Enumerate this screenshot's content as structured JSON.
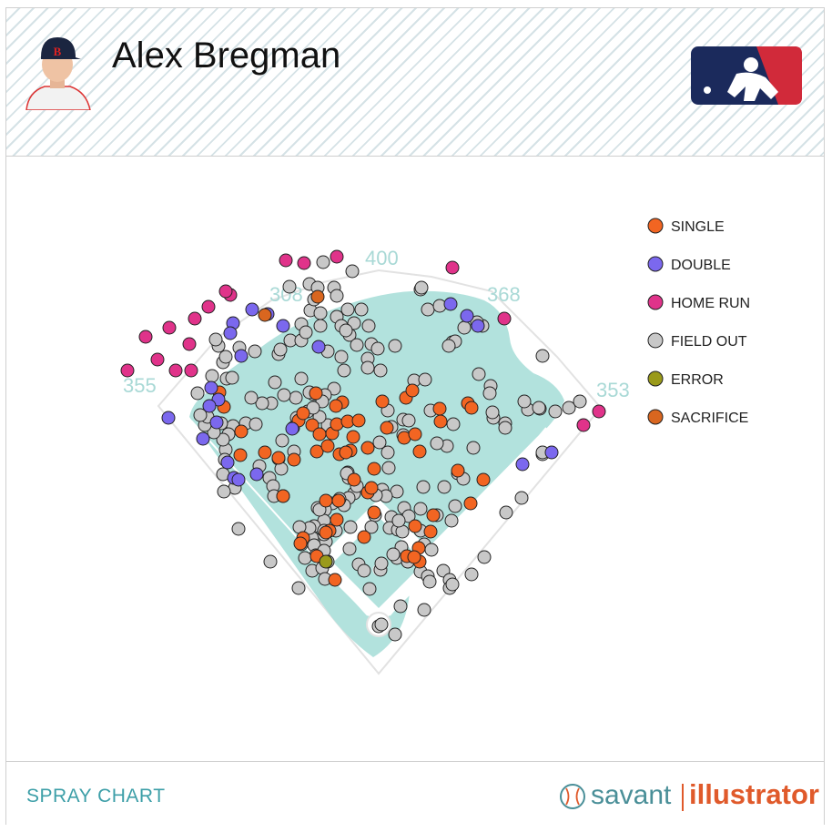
{
  "player": {
    "name": "Alex Bregman"
  },
  "footer": {
    "title": "SPRAY CHART",
    "brand_left": "savant",
    "brand_right": "illustrator"
  },
  "colors": {
    "single": "#f26522",
    "double": "#7b68ee",
    "home_run": "#e0338a",
    "field_out": "#c8c8c8",
    "error": "#9a9a1a",
    "sacrifice": "#d9661f",
    "grass": "#b2e2dd",
    "accent": "#3d9fa8"
  },
  "icons": {
    "headshot": "player-headshot-icon",
    "logo": "mlb-logo-icon",
    "brand": "baseball-icon"
  },
  "chart_data": {
    "type": "scatter",
    "title": "Alex Bregman",
    "legend_position": "top-right",
    "legend": [
      "SINGLE",
      "DOUBLE",
      "HOME RUN",
      "FIELD OUT",
      "ERROR",
      "SACRIFICE"
    ],
    "distance_labels": {
      "left_field": "355",
      "left_center": "308",
      "center": "400",
      "right_center": "368",
      "right_field": "353"
    },
    "series": [
      {
        "name": "SINGLE",
        "points": [
          [
            241,
            431
          ],
          [
            246,
            447
          ],
          [
            265,
            474
          ],
          [
            264,
            500
          ],
          [
            291,
            497
          ],
          [
            306,
            503
          ],
          [
            323,
            505
          ],
          [
            328,
            462
          ],
          [
            333,
            454
          ],
          [
            347,
            432
          ],
          [
            343,
            467
          ],
          [
            351,
            477
          ],
          [
            365,
            476
          ],
          [
            348,
            496
          ],
          [
            360,
            490
          ],
          [
            370,
            466
          ],
          [
            376,
            442
          ],
          [
            369,
            446
          ],
          [
            382,
            463
          ],
          [
            388,
            480
          ],
          [
            385,
            495
          ],
          [
            373,
            499
          ],
          [
            394,
            462
          ],
          [
            404,
            492
          ],
          [
            380,
            497
          ],
          [
            420,
            441
          ],
          [
            446,
            437
          ],
          [
            453,
            429
          ],
          [
            444,
            481
          ],
          [
            456,
            477
          ],
          [
            461,
            496
          ],
          [
            425,
            470
          ],
          [
            483,
            449
          ],
          [
            484,
            463
          ],
          [
            514,
            443
          ],
          [
            518,
            448
          ],
          [
            503,
            517
          ],
          [
            531,
            527
          ],
          [
            517,
            553
          ],
          [
            476,
            566
          ],
          [
            473,
            584
          ],
          [
            460,
            602
          ],
          [
            447,
            611
          ],
          [
            461,
            617
          ],
          [
            455,
            612
          ],
          [
            456,
            578
          ],
          [
            411,
            563
          ],
          [
            404,
            541
          ],
          [
            408,
            536
          ],
          [
            389,
            527
          ],
          [
            411,
            515
          ],
          [
            311,
            545
          ],
          [
            362,
            583
          ],
          [
            370,
            571
          ],
          [
            333,
            591
          ],
          [
            330,
            597
          ],
          [
            358,
            585
          ],
          [
            348,
            611
          ],
          [
            368,
            637
          ],
          [
            400,
            590
          ],
          [
            358,
            550
          ],
          [
            372,
            550
          ]
        ]
      },
      {
        "name": "DOUBLE",
        "points": [
          [
            277,
            340
          ],
          [
            256,
            355
          ],
          [
            253,
            366
          ],
          [
            265,
            391
          ],
          [
            232,
            426
          ],
          [
            240,
            439
          ],
          [
            230,
            446
          ],
          [
            238,
            464
          ],
          [
            223,
            482
          ],
          [
            250,
            508
          ],
          [
            257,
            525
          ],
          [
            262,
            527
          ],
          [
            282,
            521
          ],
          [
            321,
            471
          ],
          [
            350,
            381
          ],
          [
            311,
            358
          ],
          [
            294,
            345
          ],
          [
            185,
            459
          ],
          [
            495,
            334
          ],
          [
            513,
            347
          ],
          [
            525,
            358
          ],
          [
            574,
            510
          ],
          [
            606,
            497
          ]
        ]
      },
      {
        "name": "HOME RUN",
        "points": [
          [
            140,
            407
          ],
          [
            160,
            370
          ],
          [
            186,
            360
          ],
          [
            173,
            395
          ],
          [
            193,
            407
          ],
          [
            210,
            407
          ],
          [
            208,
            378
          ],
          [
            214,
            350
          ],
          [
            229,
            337
          ],
          [
            253,
            324
          ],
          [
            248,
            320
          ],
          [
            314,
            286
          ],
          [
            334,
            289
          ],
          [
            370,
            282
          ],
          [
            497,
            294
          ],
          [
            554,
            350
          ],
          [
            641,
            467
          ],
          [
            658,
            452
          ]
        ]
      },
      {
        "name": "SACRIFICE",
        "points": [
          [
            349,
            326
          ],
          [
            291,
            346
          ]
        ]
      },
      {
        "name": "ERROR",
        "points": [
          [
            358,
            617
          ]
        ]
      },
      {
        "name": "FIELD OUT",
        "points": [
          [
            318,
            315
          ],
          [
            340,
            312
          ],
          [
            349,
            316
          ],
          [
            367,
            316
          ],
          [
            387,
            298
          ],
          [
            355,
            288
          ],
          [
            370,
            325
          ],
          [
            382,
            340
          ],
          [
            397,
            340
          ],
          [
            405,
            358
          ],
          [
            389,
            355
          ],
          [
            384,
            368
          ],
          [
            392,
            379
          ],
          [
            408,
            378
          ],
          [
            415,
            383
          ],
          [
            404,
            394
          ],
          [
            404,
            404
          ],
          [
            418,
            407
          ],
          [
            434,
            380
          ],
          [
            462,
            318
          ],
          [
            470,
            340
          ],
          [
            483,
            336
          ],
          [
            497,
            376
          ],
          [
            500,
            375
          ],
          [
            526,
            411
          ],
          [
            539,
            424
          ],
          [
            538,
            432
          ],
          [
            542,
            459
          ],
          [
            555,
            465
          ],
          [
            541,
            453
          ],
          [
            555,
            470
          ],
          [
            580,
            450
          ],
          [
            593,
            449
          ],
          [
            596,
            391
          ],
          [
            610,
            452
          ],
          [
            625,
            448
          ],
          [
            637,
            441
          ],
          [
            596,
            499
          ],
          [
            573,
            547
          ],
          [
            556,
            563
          ],
          [
            500,
            556
          ],
          [
            488,
            535
          ],
          [
            496,
            572
          ],
          [
            480,
            566
          ],
          [
            491,
            490
          ],
          [
            473,
            451
          ],
          [
            480,
            487
          ],
          [
            455,
            418
          ],
          [
            467,
            417
          ],
          [
            426,
            451
          ],
          [
            443,
            461
          ],
          [
            443,
            478
          ],
          [
            449,
            462
          ],
          [
            430,
            469
          ],
          [
            417,
            486
          ],
          [
            426,
            497
          ],
          [
            427,
            514
          ],
          [
            436,
            540
          ],
          [
            420,
            538
          ],
          [
            444,
            558
          ],
          [
            462,
            559
          ],
          [
            465,
            535
          ],
          [
            424,
            545
          ],
          [
            430,
            568
          ],
          [
            428,
            580
          ],
          [
            437,
            582
          ],
          [
            412,
            566
          ],
          [
            408,
            579
          ],
          [
            389,
            542
          ],
          [
            383,
            547
          ],
          [
            378,
            555
          ],
          [
            373,
            548
          ],
          [
            365,
            553
          ],
          [
            357,
            560
          ],
          [
            349,
            558
          ],
          [
            356,
            572
          ],
          [
            345,
            578
          ],
          [
            343,
            591
          ],
          [
            358,
            595
          ],
          [
            345,
            599
          ],
          [
            347,
            610
          ],
          [
            356,
            605
          ],
          [
            343,
            627
          ],
          [
            354,
            624
          ],
          [
            384,
            603
          ],
          [
            394,
            620
          ],
          [
            400,
            627
          ],
          [
            418,
            626
          ],
          [
            436,
            613
          ],
          [
            448,
            617
          ],
          [
            462,
            628
          ],
          [
            470,
            633
          ],
          [
            472,
            639
          ],
          [
            487,
            627
          ],
          [
            494,
            637
          ],
          [
            494,
            646
          ],
          [
            518,
            631
          ],
          [
            532,
            612
          ],
          [
            497,
            642
          ],
          [
            440,
            666
          ],
          [
            466,
            670
          ],
          [
            448,
            617
          ],
          [
            434,
            697
          ],
          [
            416,
            688
          ],
          [
            419,
            686
          ],
          [
            406,
            647
          ],
          [
            385,
            579
          ],
          [
            382,
            519
          ],
          [
            383,
            525
          ],
          [
            381,
            520
          ],
          [
            392,
            534
          ],
          [
            413,
            544
          ],
          [
            360,
            467
          ],
          [
            351,
            458
          ],
          [
            331,
            416
          ],
          [
            325,
            437
          ],
          [
            312,
            434
          ],
          [
            302,
            420
          ],
          [
            298,
            443
          ],
          [
            288,
            443
          ],
          [
            276,
            437
          ],
          [
            270,
            465
          ],
          [
            281,
            466
          ],
          [
            256,
            468
          ],
          [
            251,
            477
          ],
          [
            248,
            494
          ],
          [
            245,
            483
          ],
          [
            243,
            465
          ],
          [
            235,
            475
          ],
          [
            225,
            467
          ],
          [
            228,
            458
          ],
          [
            220,
            456
          ],
          [
            217,
            432
          ],
          [
            233,
            413
          ],
          [
            249,
            416
          ],
          [
            255,
            415
          ],
          [
            245,
            398
          ],
          [
            248,
            392
          ],
          [
            240,
            380
          ],
          [
            237,
            373
          ],
          [
            263,
            382
          ],
          [
            280,
            386
          ],
          [
            306,
            389
          ],
          [
            308,
            384
          ],
          [
            319,
            374
          ],
          [
            331,
            374
          ],
          [
            331,
            356
          ],
          [
            336,
            365
          ],
          [
            352,
            358
          ],
          [
            341,
            341
          ],
          [
            345,
            329
          ],
          [
            352,
            344
          ],
          [
            370,
            348
          ],
          [
            375,
            358
          ],
          [
            380,
            363
          ],
          [
            360,
            386
          ],
          [
            375,
            392
          ],
          [
            378,
            407
          ],
          [
            367,
            427
          ],
          [
            357,
            434
          ],
          [
            354,
            441
          ],
          [
            344,
            433
          ],
          [
            340,
            431
          ],
          [
            338,
            452
          ],
          [
            344,
            448
          ],
          [
            326,
            459
          ],
          [
            322,
            470
          ],
          [
            310,
            484
          ],
          [
            306,
            504
          ],
          [
            296,
            525
          ],
          [
            300,
            534
          ],
          [
            301,
            545
          ],
          [
            309,
            515
          ],
          [
            323,
            496
          ],
          [
            498,
            466
          ],
          [
            520,
            492
          ],
          [
            503,
            520
          ],
          [
            509,
            526
          ],
          [
            466,
            598
          ],
          [
            474,
            604
          ],
          [
            462,
            583
          ],
          [
            449,
            567
          ],
          [
            442,
            584
          ],
          [
            438,
            572
          ],
          [
            441,
            601
          ],
          [
            432,
            609
          ],
          [
            419,
            619
          ],
          [
            311,
            545
          ],
          [
            351,
            560
          ],
          [
            340,
            580
          ],
          [
            329,
            579
          ],
          [
            335,
            613
          ],
          [
            297,
            617
          ],
          [
            328,
            646
          ],
          [
            262,
            581
          ],
          [
            258,
            536
          ],
          [
            247,
            505
          ],
          [
            245,
            521
          ],
          [
            246,
            540
          ],
          [
            285,
            512
          ],
          [
            331,
            598
          ],
          [
            369,
            583
          ],
          [
            356,
            587
          ],
          [
            356,
            583
          ],
          [
            360,
            617
          ],
          [
            357,
            636
          ],
          [
            463,
            316
          ],
          [
            530,
            358
          ],
          [
            493,
            380
          ],
          [
            510,
            360
          ],
          [
            524,
            354
          ],
          [
            576,
            441
          ],
          [
            592,
            448
          ],
          [
            596,
            497
          ]
        ]
      }
    ]
  }
}
